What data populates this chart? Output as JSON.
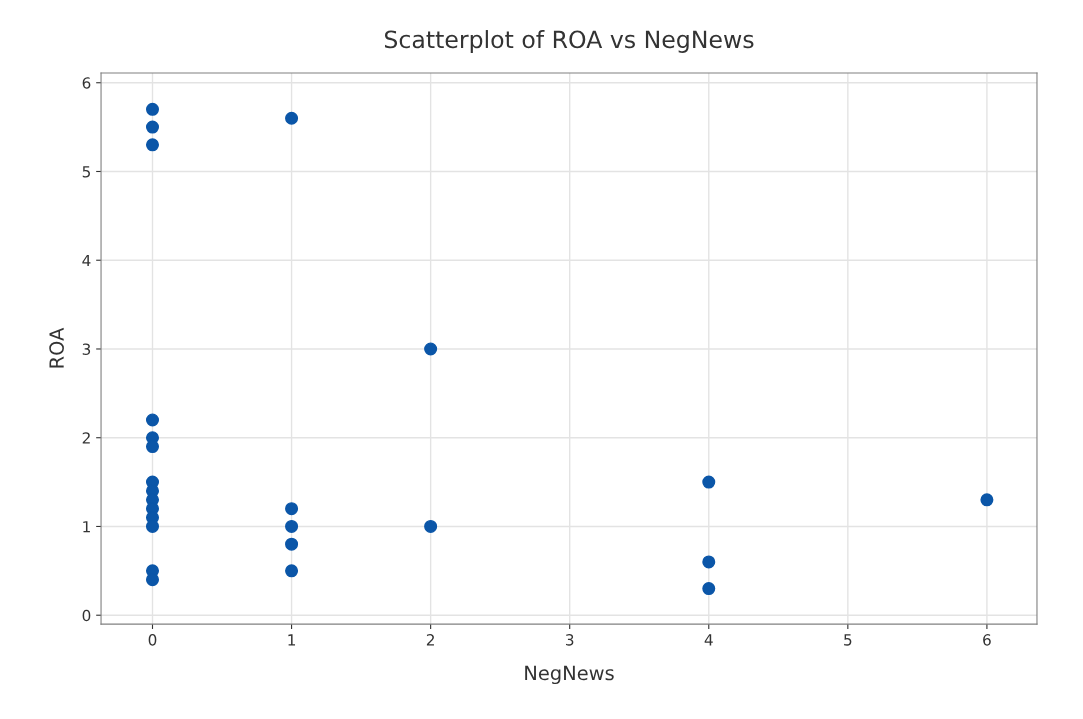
{
  "chart_data": {
    "type": "scatter",
    "title": "Scatterplot of ROA vs NegNews",
    "xlabel": "NegNews",
    "ylabel": "ROA",
    "x": [
      0,
      0,
      0,
      0,
      0,
      0,
      0,
      0,
      0,
      0,
      0,
      0,
      0,
      0,
      1,
      1,
      1,
      1,
      1,
      2,
      2,
      4,
      4,
      4,
      6
    ],
    "series": [
      {
        "color": "#0b56a8",
        "values": [
          5.7,
          5.5,
          5.3,
          2.2,
          2.0,
          1.9,
          1.5,
          1.4,
          1.3,
          1.2,
          1.1,
          1.0,
          0.5,
          0.4,
          5.6,
          1.2,
          1.0,
          0.8,
          0.5,
          3.0,
          1.0,
          1.5,
          0.6,
          0.3,
          1.3
        ]
      }
    ],
    "xlim": [
      -0.37,
      6.36
    ],
    "xticks": [
      0,
      1,
      2,
      3,
      4,
      5,
      6
    ],
    "ylim": [
      -0.1,
      6.11
    ],
    "yticks": [
      0,
      1,
      2,
      3,
      4,
      5,
      6
    ],
    "grid": true,
    "marker": "circle",
    "legend": false
  }
}
